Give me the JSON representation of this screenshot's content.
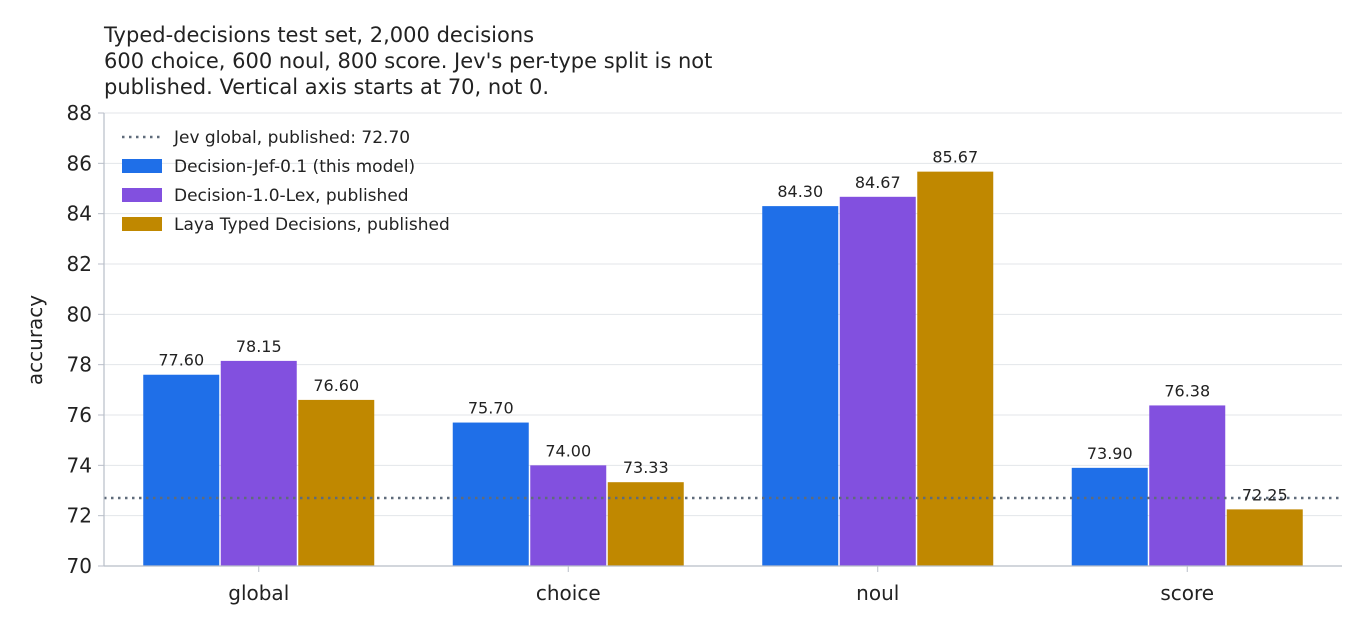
{
  "chart_data": {
    "type": "bar",
    "title_lines": [
      "Typed-decisions test set, 2,000 decisions",
      "600 choice, 600 noul, 800 score. Jev's per-type split is not",
      "published. Vertical axis starts at 70, not 0."
    ],
    "ylabel": "accuracy",
    "ylim": [
      70,
      88
    ],
    "yticks": [
      70,
      72,
      74,
      76,
      78,
      80,
      82,
      84,
      86,
      88
    ],
    "categories": [
      "global",
      "choice",
      "noul",
      "score"
    ],
    "series": [
      {
        "name": "Decision-Jef-0.1 (this model)",
        "color": "#1f6fe8",
        "values": [
          77.6,
          75.7,
          84.3,
          73.9
        ],
        "labels": [
          "77.60",
          "75.70",
          "84.30",
          "73.90"
        ]
      },
      {
        "name": "Decision-1.0-Lex, published",
        "color": "#8250df",
        "values": [
          78.15,
          74.0,
          84.67,
          76.38
        ],
        "labels": [
          "78.15",
          "74.00",
          "84.67",
          "76.38"
        ]
      },
      {
        "name": "Laya Typed Decisions, published",
        "color": "#c08800",
        "values": [
          76.6,
          73.33,
          85.67,
          72.25
        ],
        "labels": [
          "76.60",
          "73.33",
          "85.67",
          "72.25"
        ]
      }
    ],
    "reference_line": {
      "name": "Jev global, published: 72.70",
      "value": 72.7,
      "color": "#5f6b7a",
      "style": "dotted"
    },
    "grid": "horizontal",
    "legend": "top-left"
  }
}
